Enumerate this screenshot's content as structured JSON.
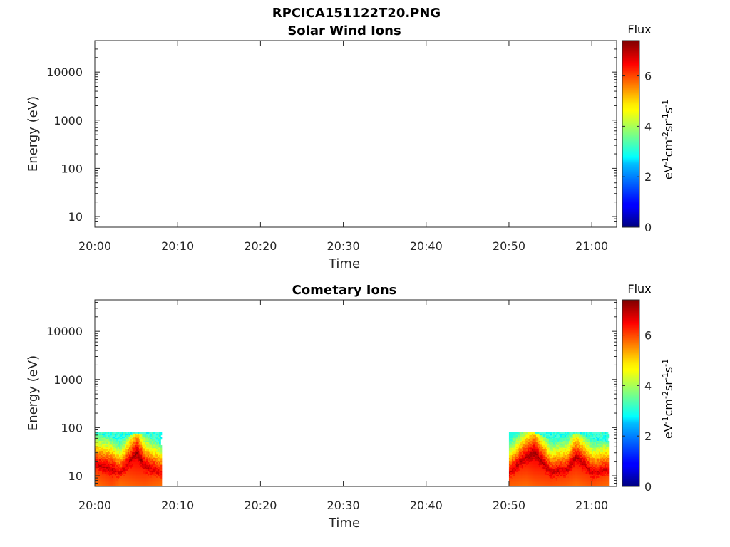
{
  "figure_title": "RPCICA151122T20.PNG",
  "chart_data": [
    {
      "type": "heatmap",
      "title": "Solar Wind Ions",
      "xlabel": "Time",
      "ylabel": "Energy (eV)",
      "x_ticks": [
        "20:00",
        "20:10",
        "20:20",
        "20:30",
        "20:40",
        "20:50",
        "21:00"
      ],
      "xlim": [
        "20:00",
        "21:03"
      ],
      "y_scale": "log",
      "y_ticks": [
        10,
        100,
        1000,
        10000
      ],
      "y_tick_labels": [
        "10",
        "100",
        "1000",
        "10000"
      ],
      "ylim": [
        6,
        45000
      ],
      "colorbar": {
        "title": "Flux",
        "label": "eV-1cm-2sr-1s-1",
        "range": [
          0,
          7.4
        ],
        "ticks": [
          0,
          2,
          4,
          6
        ],
        "tick_labels": [
          "0",
          "2",
          "4",
          "6"
        ],
        "colormap": "jet"
      },
      "data_present": false,
      "flux_blocks": []
    },
    {
      "type": "heatmap",
      "title": "Cometary Ions",
      "xlabel": "Time",
      "ylabel": "Energy (eV)",
      "x_ticks": [
        "20:00",
        "20:10",
        "20:20",
        "20:30",
        "20:40",
        "20:50",
        "21:00"
      ],
      "xlim": [
        "20:00",
        "21:03"
      ],
      "y_scale": "log",
      "y_ticks": [
        10,
        100,
        1000,
        10000
      ],
      "y_tick_labels": [
        "10",
        "100",
        "1000",
        "10000"
      ],
      "ylim": [
        6,
        45000
      ],
      "colorbar": {
        "title": "Flux",
        "label": "eV-1cm-2sr-1s-1",
        "range": [
          0,
          7.4
        ],
        "ticks": [
          0,
          2,
          4,
          6
        ],
        "tick_labels": [
          "0",
          "2",
          "4",
          "6"
        ],
        "colormap": "jet"
      },
      "data_present": true,
      "flux_blocks": [
        {
          "t_start": "20:00",
          "t_end": "20:08",
          "energy_max_eV": 80,
          "energy_min_eV": 6,
          "profile": [
            {
              "time": "20:00",
              "peak_energy_eV": 18,
              "peak_flux": 6.8,
              "top_energy_eV": 80
            },
            {
              "time": "20:02",
              "peak_energy_eV": 14,
              "peak_flux": 6.9,
              "top_energy_eV": 60
            },
            {
              "time": "20:03",
              "peak_energy_eV": 12,
              "peak_flux": 6.6,
              "top_energy_eV": 55
            },
            {
              "time": "20:05",
              "peak_energy_eV": 30,
              "peak_flux": 7.2,
              "top_energy_eV": 80
            },
            {
              "time": "20:06",
              "peak_energy_eV": 16,
              "peak_flux": 6.9,
              "top_energy_eV": 75
            },
            {
              "time": "20:08",
              "peak_energy_eV": 12,
              "peak_flux": 6.6,
              "top_energy_eV": 45
            }
          ]
        },
        {
          "t_start": "20:50",
          "t_end": "21:02",
          "energy_max_eV": 80,
          "energy_min_eV": 6,
          "profile": [
            {
              "time": "20:50",
              "peak_energy_eV": 12,
              "peak_flux": 6.7,
              "top_energy_eV": 80
            },
            {
              "time": "20:52",
              "peak_energy_eV": 25,
              "peak_flux": 7.0,
              "top_energy_eV": 80
            },
            {
              "time": "20:53",
              "peak_energy_eV": 30,
              "peak_flux": 7.2,
              "top_energy_eV": 80
            },
            {
              "time": "20:55",
              "peak_energy_eV": 12,
              "peak_flux": 6.8,
              "top_energy_eV": 60
            },
            {
              "time": "20:57",
              "peak_energy_eV": 14,
              "peak_flux": 6.8,
              "top_energy_eV": 70
            },
            {
              "time": "20:58",
              "peak_energy_eV": 25,
              "peak_flux": 7.0,
              "top_energy_eV": 80
            },
            {
              "time": "21:00",
              "peak_energy_eV": 12,
              "peak_flux": 6.8,
              "top_energy_eV": 60
            },
            {
              "time": "21:02",
              "peak_energy_eV": 14,
              "peak_flux": 6.7,
              "top_energy_eV": 50
            }
          ]
        }
      ]
    }
  ]
}
